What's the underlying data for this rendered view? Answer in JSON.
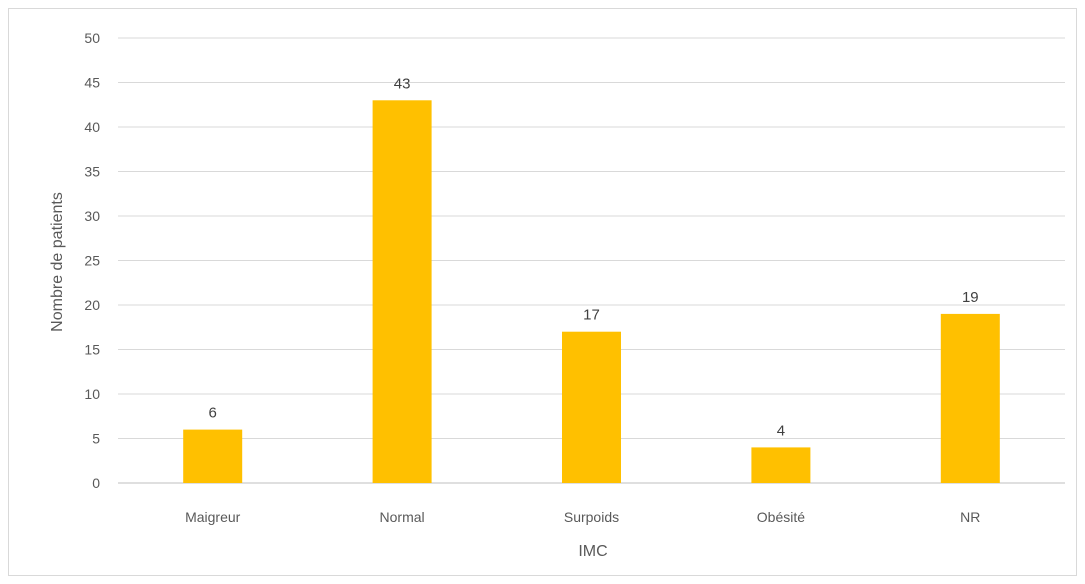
{
  "chart_data": {
    "type": "bar",
    "title": "",
    "xlabel": "IMC",
    "ylabel": "Nombre de patients",
    "categories": [
      "Maigreur",
      "Normal",
      "Surpoids",
      "Obésité",
      "NR"
    ],
    "values": [
      6,
      43,
      17,
      4,
      19
    ],
    "ylim": [
      0,
      50
    ],
    "yticks": [
      0,
      5,
      10,
      15,
      20,
      25,
      30,
      35,
      40,
      45,
      50
    ],
    "grid": true,
    "data_labels": true,
    "legend": "none",
    "bar_color": "#FFC000"
  }
}
